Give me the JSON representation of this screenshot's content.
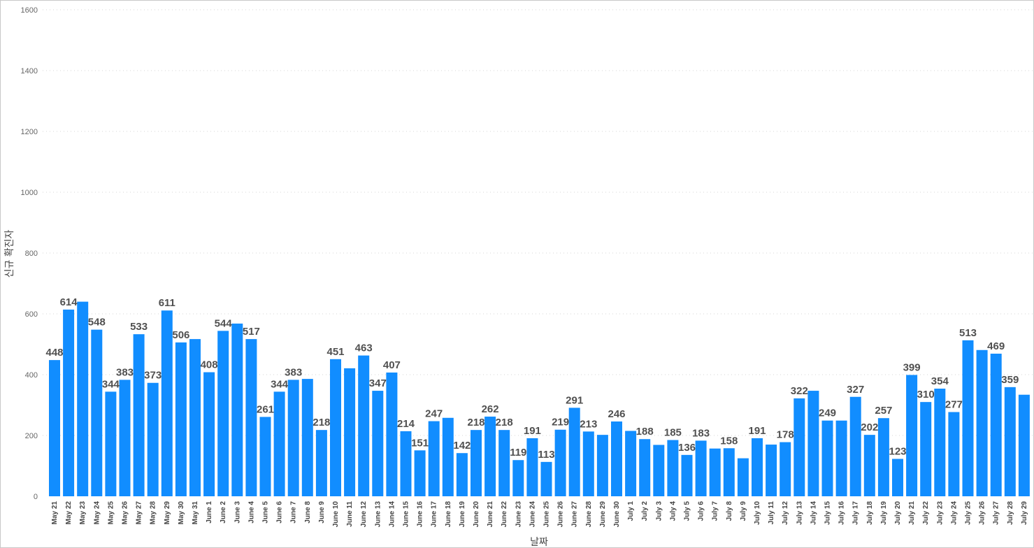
{
  "chart_data": {
    "type": "bar",
    "xlabel": "날짜",
    "ylabel": "신규 확진자",
    "ylim": [
      0,
      1600
    ],
    "yticks": [
      0,
      200,
      400,
      600,
      800,
      1000,
      1200,
      1400,
      1600
    ],
    "grid": true,
    "bar_color": "#118DFF",
    "categories": [
      "May 21",
      "May 22",
      "May 23",
      "May 24",
      "May 25",
      "May 26",
      "May 27",
      "May 28",
      "May 29",
      "May 30",
      "May 31",
      "June 1",
      "June 2",
      "June 3",
      "June 4",
      "June 5",
      "June 6",
      "June 7",
      "June 8",
      "June 9",
      "June 10",
      "June 11",
      "June 12",
      "June 13",
      "June 14",
      "June 15",
      "June 16",
      "June 17",
      "June 18",
      "June 19",
      "June 20",
      "June 21",
      "June 22",
      "June 23",
      "June 24",
      "June 25",
      "June 26",
      "June 27",
      "June 28",
      "June 29",
      "June 30",
      "July 1",
      "July 2",
      "July 3",
      "July 4",
      "July 5",
      "July 6",
      "July 7",
      "July 8",
      "July 9",
      "July 10",
      "July 11",
      "July 12",
      "July 13",
      "July 14",
      "July 15",
      "July 16",
      "July 17",
      "July 18",
      "July 19",
      "July 20",
      "July 21",
      "July 22",
      "July 23",
      "July 24",
      "July 25",
      "July 26",
      "July 27",
      "July 28",
      "July 29"
    ],
    "values": [
      448,
      614,
      640,
      548,
      344,
      383,
      533,
      373,
      611,
      506,
      517,
      408,
      544,
      568,
      517,
      261,
      344,
      383,
      386,
      218,
      451,
      421,
      463,
      347,
      407,
      214,
      151,
      247,
      258,
      142,
      218,
      262,
      218,
      119,
      191,
      113,
      219,
      291,
      213,
      202,
      246,
      215,
      188,
      169,
      185,
      136,
      183,
      157,
      158,
      125,
      191,
      170,
      178,
      322,
      347,
      249,
      249,
      327,
      202,
      257,
      123,
      399,
      310,
      354,
      277,
      513,
      481,
      469,
      359,
      334
    ],
    "data_labels": [
      "448",
      "614",
      "",
      "548",
      "344",
      "383",
      "533",
      "373",
      "611",
      "506",
      "",
      "408",
      "544",
      "",
      "517",
      "261",
      "344",
      "383",
      "",
      "218",
      "451",
      "",
      "463",
      "347",
      "407",
      "214",
      "151",
      "247",
      "",
      "142",
      "218",
      "262",
      "218",
      "119",
      "191",
      "113",
      "219",
      "291",
      "213",
      "",
      "246",
      "",
      "188",
      "",
      "185",
      "136",
      "183",
      "",
      "158",
      "",
      "191",
      "",
      "178",
      "322",
      "",
      "249",
      "",
      "327",
      "202",
      "257",
      "123",
      "399",
      "310",
      "354",
      "277",
      "513",
      "",
      "469",
      "359",
      ""
    ]
  }
}
